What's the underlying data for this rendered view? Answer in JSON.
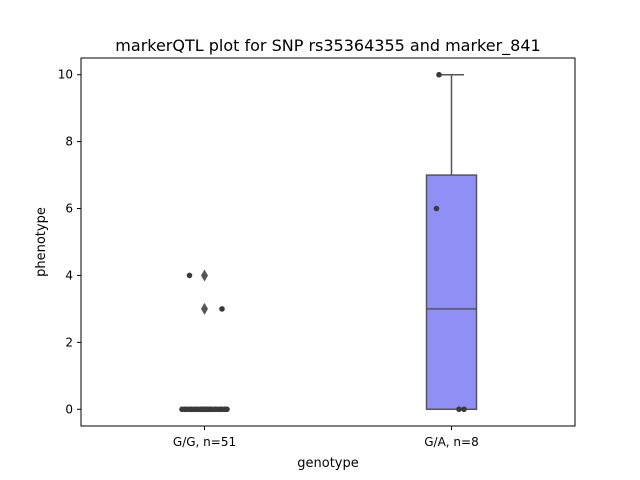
{
  "chart_data": {
    "type": "box",
    "title": "markerQTL plot for SNP rs35364355 and marker_841",
    "xlabel": "genotype",
    "ylabel": "phenotype",
    "ylim": [
      -0.5,
      10.5
    ],
    "yticks": [
      0,
      2,
      4,
      6,
      8,
      10
    ],
    "grid": false,
    "categories": [
      "G/G, n=51",
      "G/A, n=8"
    ],
    "boxes": [
      {
        "category": "G/G, n=51",
        "q1": 0,
        "median": 0,
        "q3": 0,
        "whisker_low": 0,
        "whisker_high": 0,
        "fliers": [
          4,
          3
        ],
        "color": "#8f8ff5",
        "points": [
          [
            0.05,
            0
          ],
          [
            0.1,
            0
          ],
          [
            0.15,
            0
          ],
          [
            0.2,
            0
          ],
          [
            0.25,
            0
          ],
          [
            0.3,
            0
          ],
          [
            0.35,
            0
          ],
          [
            0.4,
            0
          ],
          [
            0.45,
            0
          ],
          [
            0.5,
            0
          ],
          [
            0.55,
            0
          ],
          [
            0.6,
            0
          ],
          [
            0.65,
            0
          ],
          [
            0.7,
            0
          ],
          [
            0.75,
            0
          ],
          [
            0.8,
            0
          ],
          [
            0.85,
            0
          ],
          [
            0.9,
            0
          ],
          [
            0.95,
            0
          ],
          [
            0.12,
            0
          ],
          [
            0.22,
            0
          ],
          [
            0.32,
            0
          ],
          [
            0.42,
            0
          ],
          [
            0.52,
            0
          ],
          [
            0.62,
            0
          ],
          [
            0.72,
            0
          ],
          [
            0.82,
            0
          ],
          [
            0.92,
            0
          ],
          [
            0.47,
            0
          ],
          [
            0.57,
            0
          ],
          [
            0.2,
            4
          ],
          [
            0.85,
            3
          ]
        ]
      },
      {
        "category": "G/A, n=8",
        "q1": 0,
        "median": 3,
        "q3": 7,
        "whisker_low": 0,
        "whisker_high": 10,
        "fliers": [],
        "color": "#8f8ff5",
        "points": [
          [
            0.25,
            10
          ],
          [
            0.2,
            6
          ],
          [
            0.65,
            0
          ],
          [
            0.75,
            0
          ]
        ]
      }
    ]
  }
}
